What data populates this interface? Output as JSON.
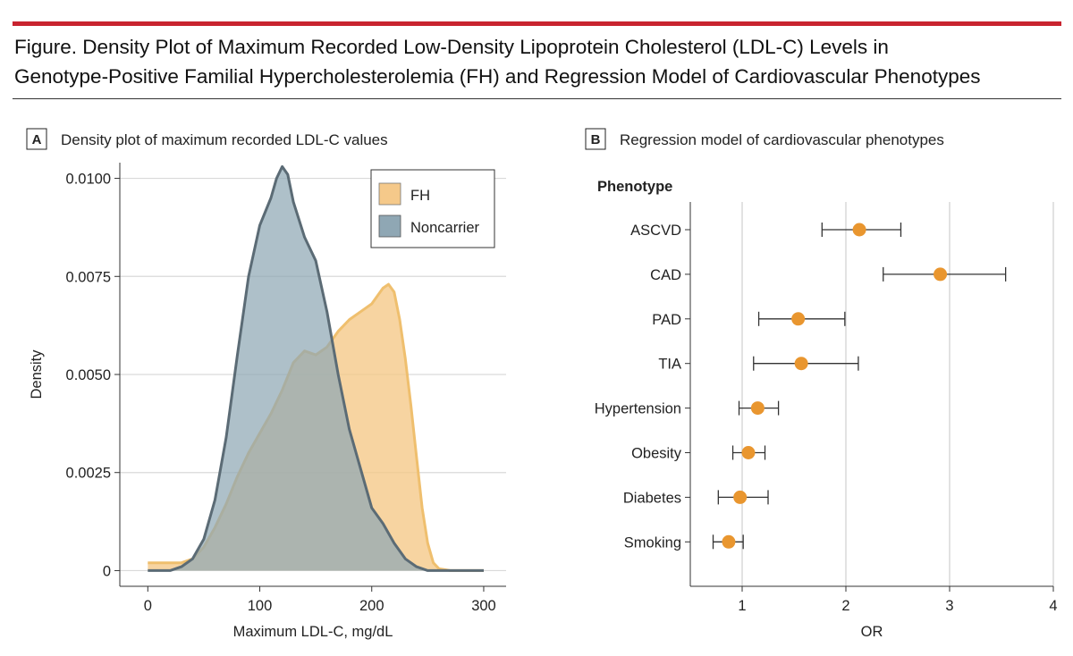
{
  "figure": {
    "title_line1": "Figure. Density Plot of Maximum Recorded Low-Density Lipoprotein Cholesterol (LDL-C) Levels in",
    "title_line2": "Genotype-Positive Familial Hypercholesterolemia (FH) and Regression Model of Cardiovascular Phenotypes"
  },
  "colors": {
    "accent_bar": "#c8242f",
    "fh_fill": "#f5c98a",
    "fh_stroke": "#efbf6e",
    "noncarrier_fill": "#8fa7b4",
    "noncarrier_stroke": "#5b6b75",
    "or_marker": "#e9962f",
    "grid": "#d9d9d9"
  },
  "chart_data": [
    {
      "panel_letter": "A",
      "panel_title": "Density plot of maximum recorded LDL-C values",
      "type": "area",
      "xlabel": "Maximum LDL-C, mg/dL",
      "ylabel": "Density",
      "xlim": [
        -25,
        320
      ],
      "ylim": [
        -0.0004,
        0.0104
      ],
      "x_ticks": [
        0,
        100,
        200,
        300
      ],
      "y_ticks": [
        0,
        0.0025,
        0.005,
        0.0075,
        0.01
      ],
      "y_tick_labels": [
        "0",
        "0.0025",
        "0.0050",
        "0.0075",
        "0.0100"
      ],
      "grid": true,
      "legend_position": "top-right",
      "series": [
        {
          "name": "FH",
          "x": [
            0,
            20,
            30,
            40,
            50,
            60,
            70,
            80,
            90,
            100,
            110,
            120,
            130,
            140,
            150,
            160,
            170,
            180,
            190,
            200,
            210,
            215,
            220,
            225,
            230,
            235,
            240,
            245,
            250,
            255,
            260,
            270,
            280,
            290,
            300
          ],
          "y": [
            0.0002,
            0.0002,
            0.0002,
            0.0003,
            0.0006,
            0.0011,
            0.0017,
            0.0024,
            0.003,
            0.0035,
            0.004,
            0.0046,
            0.0053,
            0.0056,
            0.0055,
            0.0057,
            0.0061,
            0.0064,
            0.0066,
            0.0068,
            0.0072,
            0.0073,
            0.0071,
            0.0064,
            0.0054,
            0.0042,
            0.0029,
            0.0016,
            0.0007,
            0.0002,
            5e-05,
            0,
            0,
            0,
            0
          ]
        },
        {
          "name": "Noncarrier",
          "x": [
            0,
            10,
            20,
            30,
            40,
            50,
            60,
            70,
            80,
            90,
            100,
            110,
            115,
            120,
            125,
            130,
            140,
            150,
            160,
            170,
            180,
            190,
            200,
            210,
            220,
            230,
            240,
            250,
            260,
            270,
            280,
            290,
            300
          ],
          "y": [
            0,
            0,
            0,
            0.0001,
            0.0003,
            0.0008,
            0.0018,
            0.0034,
            0.0055,
            0.0075,
            0.0088,
            0.0095,
            0.01,
            0.0103,
            0.0101,
            0.0094,
            0.0085,
            0.0079,
            0.0066,
            0.005,
            0.0036,
            0.0026,
            0.0016,
            0.0012,
            0.0007,
            0.0003,
            0.0001,
            0,
            0,
            0,
            0,
            0,
            0
          ]
        }
      ]
    },
    {
      "panel_letter": "B",
      "panel_title": "Regression model of cardiovascular phenotypes",
      "type": "scatter",
      "category_header": "Phenotype",
      "xlabel": "OR",
      "xlim": [
        0.5,
        4.0
      ],
      "x_ticks": [
        1,
        2,
        3,
        4
      ],
      "grid": true,
      "categories": [
        "ASCVD",
        "CAD",
        "PAD",
        "TIA",
        "Hypertension",
        "Obesity",
        "Diabetes",
        "Smoking"
      ],
      "or_values": [
        2.13,
        2.91,
        1.54,
        1.57,
        1.15,
        1.06,
        0.98,
        0.87
      ],
      "ci_lower": [
        1.77,
        2.36,
        1.16,
        1.11,
        0.97,
        0.91,
        0.77,
        0.72
      ],
      "ci_upper": [
        2.53,
        3.54,
        1.99,
        2.12,
        1.35,
        1.22,
        1.25,
        1.01
      ]
    }
  ]
}
